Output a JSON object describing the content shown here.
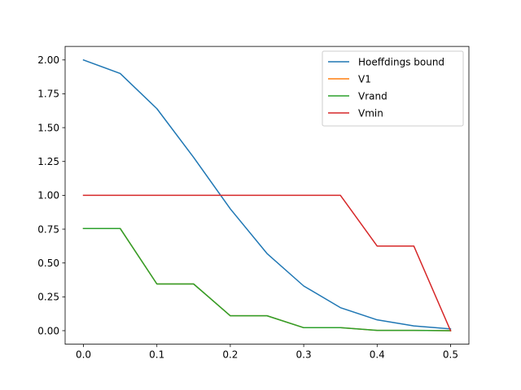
{
  "chart_data": {
    "type": "line",
    "title": "",
    "xlabel": "",
    "ylabel": "",
    "xlim": [
      -0.025,
      0.525
    ],
    "ylim": [
      -0.1,
      2.1
    ],
    "x_ticks": [
      0.0,
      0.1,
      0.2,
      0.3,
      0.4,
      0.5
    ],
    "x_tick_labels": [
      "0.0",
      "0.1",
      "0.2",
      "0.3",
      "0.4",
      "0.5"
    ],
    "y_ticks": [
      0.0,
      0.25,
      0.5,
      0.75,
      1.0,
      1.25,
      1.5,
      1.75,
      2.0
    ],
    "y_tick_labels": [
      "0.00",
      "0.25",
      "0.50",
      "0.75",
      "1.00",
      "1.25",
      "1.50",
      "1.75",
      "2.00"
    ],
    "grid": false,
    "legend_position": "top-right",
    "x": [
      0.0,
      0.05,
      0.1,
      0.15,
      0.2,
      0.25,
      0.3,
      0.35,
      0.4,
      0.45,
      0.5
    ],
    "series": [
      {
        "name": "Hoeffdings bound",
        "color": "#1f77b4",
        "values": [
          2.0,
          1.9,
          1.64,
          1.28,
          0.9,
          0.57,
          0.33,
          0.17,
          0.08,
          0.035,
          0.013
        ]
      },
      {
        "name": "V1",
        "color": "#ff7f0e",
        "values": [
          0.755,
          0.755,
          0.345,
          0.345,
          0.11,
          0.11,
          0.022,
          0.022,
          0.002,
          0.002,
          0.0
        ]
      },
      {
        "name": "Vrand",
        "color": "#2ca02c",
        "values": [
          0.755,
          0.755,
          0.345,
          0.345,
          0.11,
          0.11,
          0.022,
          0.022,
          0.002,
          0.002,
          0.0
        ]
      },
      {
        "name": "Vmin",
        "color": "#d62728",
        "values": [
          1.0,
          1.0,
          1.0,
          1.0,
          1.0,
          1.0,
          1.0,
          1.0,
          0.625,
          0.625,
          0.0
        ]
      }
    ]
  }
}
